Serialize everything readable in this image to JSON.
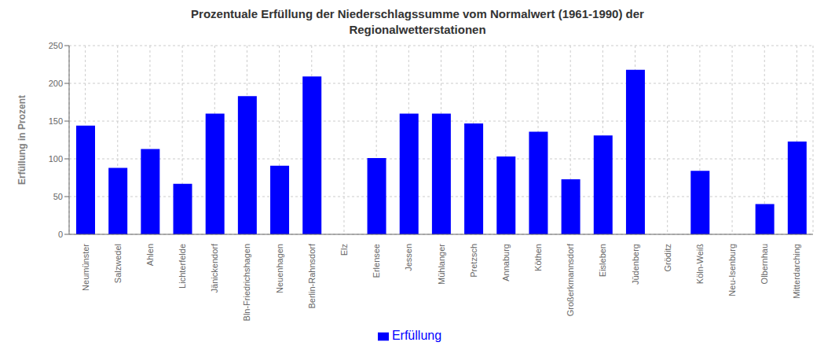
{
  "chart_data": {
    "type": "bar",
    "title": "Prozentuale Erfüllung der Niederschlagssumme vom Normalwert (1961-1990) der\nRegionalwetterstationen",
    "ylabel": "Erfüllung in Prozent",
    "categories": [
      "Neumünster",
      "Salzwedel",
      "Ahlen",
      "Lichterfelde",
      "Jänickendorf",
      "Bln-Friedrichshagen",
      "Neuenhagen",
      "Berlin-Rahnsdorf",
      "Elz",
      "Erlensee",
      "Jessen",
      "Mühlanger",
      "Pretzsch",
      "Annaburg",
      "Köthen",
      "Großerkmannsdorf",
      "Eisleben",
      "Jüdenberg",
      "Gröditz",
      "Köln-Weiß",
      "Neu-Isenburg",
      "Olbernhau",
      "Mitterdarching"
    ],
    "series": [
      {
        "name": "Erfüllung",
        "color": "#0000FF",
        "values": [
          144,
          88,
          113,
          67,
          160,
          183,
          91,
          209,
          0,
          101,
          160,
          160,
          147,
          103,
          136,
          73,
          131,
          218,
          0,
          84,
          0,
          40,
          123
        ]
      }
    ],
    "ylim": [
      0,
      250
    ],
    "yticks": [
      0,
      50,
      100,
      150,
      200,
      250
    ],
    "grid": true,
    "legend": "bottom"
  }
}
